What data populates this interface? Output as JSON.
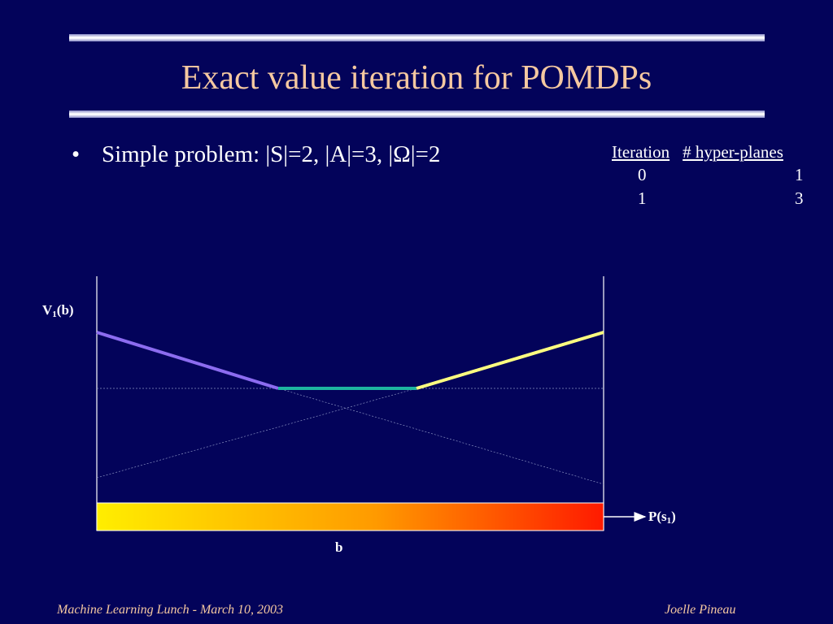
{
  "slide": {
    "title": "Exact value iteration for POMDPs",
    "bullet_marker": "•",
    "bullet_text": "Simple problem: |S|=2, |A|=3, |Ω|=2"
  },
  "table": {
    "headers": [
      "Iteration",
      "# hyper-planes"
    ],
    "rows": [
      [
        "0",
        "1"
      ],
      [
        "1",
        "3"
      ]
    ]
  },
  "plot": {
    "ylabel_main": "V",
    "ylabel_sub": "1",
    "ylabel_tail": "(b)",
    "xlabel_main": "P(s",
    "xlabel_sub": "1",
    "xlabel_tail": ")",
    "belief_label": "b",
    "colors": {
      "line_decreasing": "#8c6cf0",
      "line_flat": "#1eb4a0",
      "line_increasing": "#ffff80",
      "gradient_start": "#ffee00",
      "gradient_end": "#ff1a00"
    }
  },
  "footer": {
    "left": "Machine Learning Lunch - March 10, 2003",
    "right": "Joelle Pineau"
  }
}
